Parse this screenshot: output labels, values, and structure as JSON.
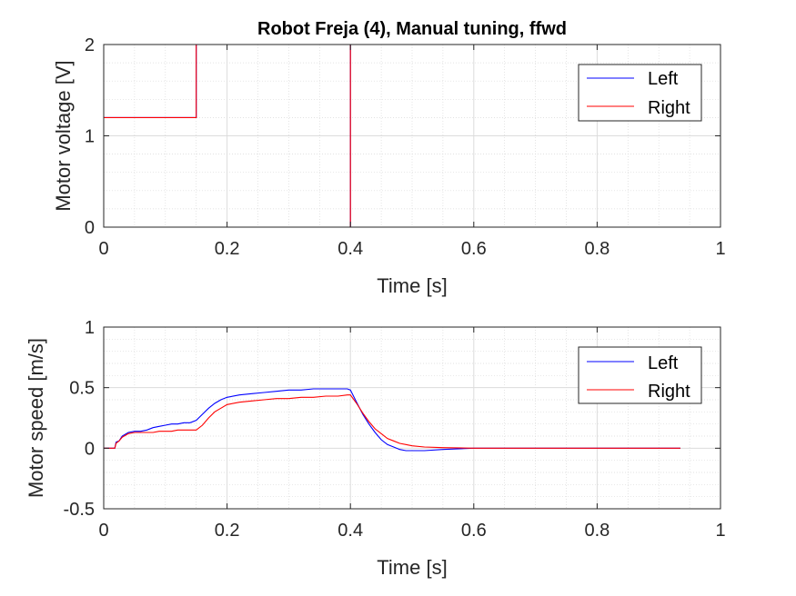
{
  "chart_data": [
    {
      "type": "line",
      "title": "Robot Freja (4), Manual tuning, ffwd",
      "xlabel": "Time [s]",
      "ylabel": "Motor voltage [V]",
      "xlim": [
        0,
        1
      ],
      "ylim": [
        0,
        2
      ],
      "xticks": [
        0,
        0.2,
        0.4,
        0.6,
        0.8,
        1
      ],
      "xtick_labels": [
        "0",
        "0.2",
        "0.4",
        "0.6",
        "0.8",
        "1"
      ],
      "yticks": [
        0,
        1,
        2
      ],
      "ytick_labels": [
        "0",
        "1",
        "2"
      ],
      "grid": true,
      "minor_grid": true,
      "legend": "top-right",
      "series": [
        {
          "name": "Left",
          "color": "#0000ff",
          "x": [
            0,
            0.15,
            0.15,
            0.4,
            0.4,
            0.935
          ],
          "y": [
            1.2,
            1.2,
            2.0,
            2.0,
            0.0,
            0.0
          ]
        },
        {
          "name": "Right",
          "color": "#ff0000",
          "x": [
            0,
            0.15,
            0.15,
            0.4,
            0.4,
            0.935
          ],
          "y": [
            1.2,
            1.2,
            2.0,
            2.0,
            0.0,
            0.0
          ]
        }
      ]
    },
    {
      "type": "line",
      "title": "",
      "xlabel": "Time [s]",
      "ylabel": "Motor speed [m/s]",
      "xlim": [
        0,
        1
      ],
      "ylim": [
        -0.5,
        1
      ],
      "xticks": [
        0,
        0.2,
        0.4,
        0.6,
        0.8,
        1
      ],
      "xtick_labels": [
        "0",
        "0.2",
        "0.4",
        "0.6",
        "0.8",
        "1"
      ],
      "yticks": [
        -0.5,
        0,
        0.5,
        1
      ],
      "ytick_labels": [
        "-0.5",
        "0",
        "0.5",
        "1"
      ],
      "grid": true,
      "minor_grid": true,
      "legend": "top-right",
      "series": [
        {
          "name": "Left",
          "color": "#0000ff",
          "x": [
            0,
            0.01,
            0.018,
            0.02,
            0.025,
            0.03,
            0.04,
            0.05,
            0.06,
            0.07,
            0.08,
            0.09,
            0.1,
            0.11,
            0.12,
            0.13,
            0.14,
            0.15,
            0.16,
            0.17,
            0.18,
            0.19,
            0.2,
            0.22,
            0.24,
            0.26,
            0.28,
            0.3,
            0.32,
            0.34,
            0.36,
            0.38,
            0.395,
            0.4,
            0.41,
            0.42,
            0.43,
            0.44,
            0.45,
            0.46,
            0.47,
            0.48,
            0.49,
            0.5,
            0.52,
            0.55,
            0.6,
            0.7,
            0.8,
            0.9,
            0.935
          ],
          "y": [
            0,
            0,
            0,
            0.05,
            0.06,
            0.1,
            0.13,
            0.14,
            0.14,
            0.15,
            0.17,
            0.18,
            0.19,
            0.2,
            0.2,
            0.21,
            0.21,
            0.23,
            0.28,
            0.33,
            0.37,
            0.4,
            0.42,
            0.44,
            0.45,
            0.46,
            0.47,
            0.48,
            0.48,
            0.49,
            0.49,
            0.49,
            0.49,
            0.48,
            0.38,
            0.28,
            0.2,
            0.13,
            0.07,
            0.03,
            0.01,
            -0.01,
            -0.02,
            -0.02,
            -0.02,
            -0.01,
            0,
            0,
            0,
            0,
            0
          ]
        },
        {
          "name": "Right",
          "color": "#ff0000",
          "x": [
            0,
            0.01,
            0.018,
            0.02,
            0.025,
            0.03,
            0.04,
            0.05,
            0.06,
            0.07,
            0.08,
            0.09,
            0.1,
            0.11,
            0.12,
            0.13,
            0.14,
            0.15,
            0.16,
            0.17,
            0.18,
            0.19,
            0.2,
            0.22,
            0.24,
            0.26,
            0.28,
            0.3,
            0.32,
            0.34,
            0.36,
            0.38,
            0.395,
            0.4,
            0.41,
            0.42,
            0.43,
            0.44,
            0.45,
            0.46,
            0.47,
            0.48,
            0.49,
            0.5,
            0.52,
            0.55,
            0.6,
            0.7,
            0.8,
            0.9,
            0.935
          ],
          "y": [
            0,
            0,
            0,
            0.04,
            0.06,
            0.09,
            0.12,
            0.13,
            0.13,
            0.13,
            0.13,
            0.14,
            0.14,
            0.14,
            0.15,
            0.15,
            0.15,
            0.15,
            0.19,
            0.25,
            0.3,
            0.33,
            0.36,
            0.38,
            0.39,
            0.4,
            0.41,
            0.41,
            0.42,
            0.42,
            0.43,
            0.43,
            0.44,
            0.44,
            0.37,
            0.29,
            0.22,
            0.16,
            0.12,
            0.08,
            0.06,
            0.04,
            0.03,
            0.02,
            0.01,
            0.005,
            0,
            0,
            0,
            0,
            0
          ]
        }
      ]
    }
  ]
}
